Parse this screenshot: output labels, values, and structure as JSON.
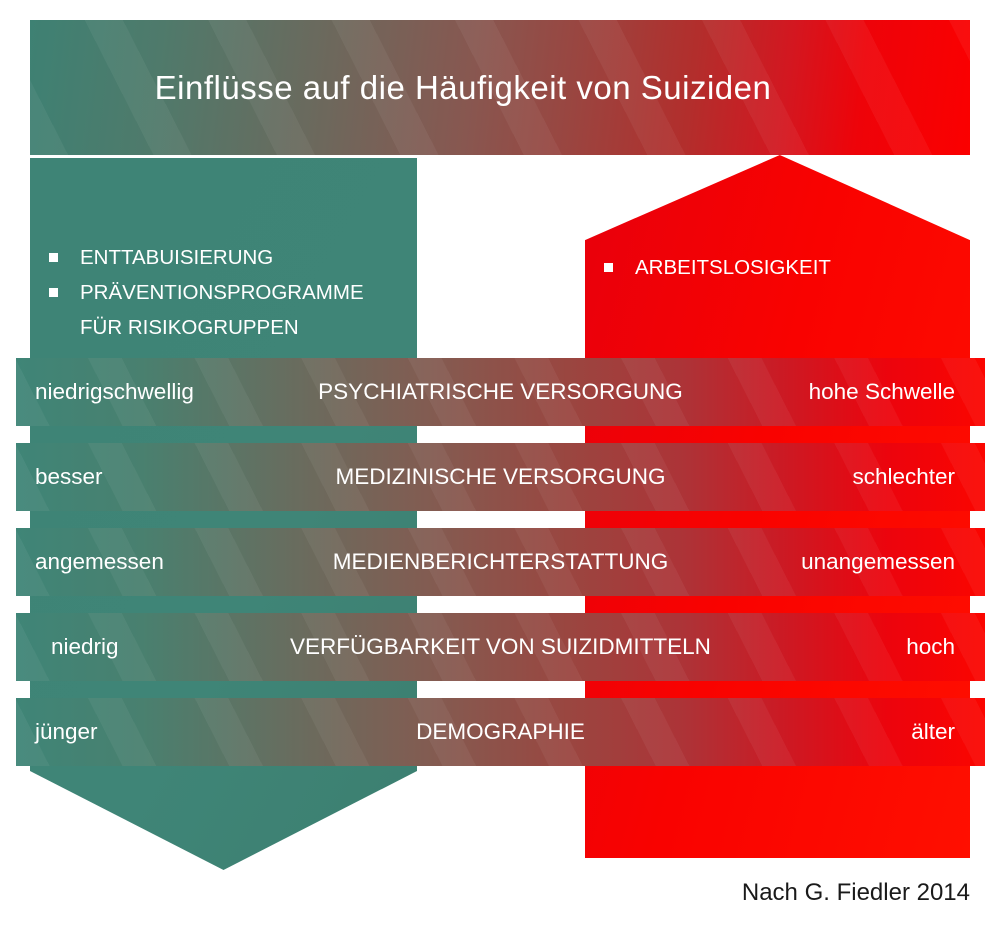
{
  "title": "Einflüsse auf die Häufigkeit von Suiziden",
  "attribution": "Nach G. Fiedler 2014",
  "colors": {
    "green": "#3e8476",
    "red": "#fb0200",
    "mid_muted_red": "#9a4640",
    "text_on_color": "#ffffff",
    "attribution_text": "#1a1a1a"
  },
  "protective_side": {
    "direction": "down-arrow",
    "meaning": "factors lowering suicide frequency",
    "items": [
      "ENTTABUISIERUNG",
      "PRÄVENTIONSPROGRAMME FÜR RISIKOGRUPPEN"
    ]
  },
  "risk_side": {
    "direction": "up-arrow",
    "meaning": "factors raising suicide frequency",
    "items": [
      "ARBEITSLOSIGKEIT"
    ]
  },
  "rows": [
    {
      "left": "niedrigschwellig",
      "center": "PSYCHIATRISCHE VERSORGUNG",
      "right": "hohe Schwelle"
    },
    {
      "left": "besser",
      "center": "MEDIZINISCHE VERSORGUNG",
      "right": "schlechter"
    },
    {
      "left": "angemessen",
      "center": "MEDIENBERICHTERSTATTUNG",
      "right": "unangemessen"
    },
    {
      "left": "niedrig",
      "center": "VERFÜGBARKEIT VON SUIZIDMITTELN",
      "right": "hoch"
    },
    {
      "left": "jünger",
      "center": "DEMOGRAPHIE",
      "right": "älter"
    }
  ]
}
